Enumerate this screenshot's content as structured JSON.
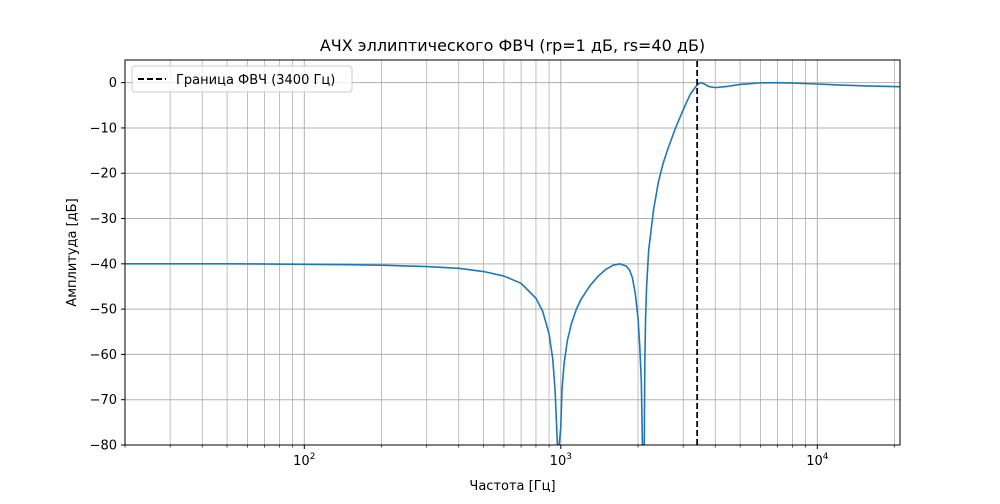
{
  "chart_data": {
    "type": "line",
    "title": "АЧХ эллиптического ФВЧ (rp=1 дБ, rs=40 дБ)",
    "xlabel": "Частота [Гц]",
    "ylabel": "Амплитуда [дБ]",
    "x_scale": "log",
    "xlim": [
      20,
      21000
    ],
    "ylim": [
      -80,
      5
    ],
    "x_ticks": [
      {
        "value": 100,
        "base": "10",
        "exp": "2"
      },
      {
        "value": 1000,
        "base": "10",
        "exp": "3"
      },
      {
        "value": 10000,
        "base": "10",
        "exp": "4"
      }
    ],
    "y_ticks": [
      0,
      -10,
      -20,
      -30,
      -40,
      -50,
      -60,
      -70,
      -80
    ],
    "y_tick_labels": [
      "0",
      "−10",
      "−20",
      "−30",
      "−40",
      "−50",
      "−60",
      "−70",
      "−80"
    ],
    "grid": "on (major and minor)",
    "legend_position": "upper-left",
    "series": [
      {
        "color": "#1f77b4",
        "x": [
          20,
          30,
          50,
          100,
          150,
          200,
          300,
          400,
          500,
          600,
          700,
          800,
          850,
          900,
          930,
          950,
          970,
          985,
          1000,
          1010,
          1030,
          1060,
          1100,
          1150,
          1200,
          1300,
          1400,
          1500,
          1600,
          1700,
          1800,
          1850,
          1900,
          1950,
          2000,
          2030,
          2060,
          2080,
          2100,
          2115,
          2125,
          2140,
          2160,
          2200,
          2300,
          2400,
          2500,
          2600,
          2800,
          3000,
          3200,
          3400,
          3500,
          3600,
          3700,
          3800,
          4000,
          4500,
          5000,
          6000,
          7000,
          8000,
          10000,
          12000,
          15000,
          18000,
          21000
        ],
        "y": [
          -40.0,
          -40.0,
          -40.0,
          -40.1,
          -40.2,
          -40.3,
          -40.6,
          -41.0,
          -41.7,
          -42.7,
          -44.3,
          -47.6,
          -50.5,
          -55.5,
          -61.0,
          -68.0,
          -80.0,
          -80.0,
          -76.0,
          -68.0,
          -62.0,
          -57.0,
          -53.2,
          -50.0,
          -47.8,
          -44.8,
          -42.7,
          -41.2,
          -40.3,
          -40.0,
          -40.5,
          -41.3,
          -43.0,
          -46.5,
          -52.0,
          -58.0,
          -66.0,
          -80.0,
          -80.0,
          -80.0,
          -62.0,
          -52.0,
          -45.0,
          -37.0,
          -28.0,
          -22.0,
          -18.0,
          -15.0,
          -10.0,
          -6.0,
          -2.5,
          -0.5,
          0.0,
          -0.2,
          -0.6,
          -0.9,
          -1.1,
          -0.8,
          -0.4,
          -0.05,
          0.0,
          -0.1,
          -0.3,
          -0.5,
          -0.7,
          -0.8,
          -0.9
        ]
      },
      {
        "name": "Граница ФВЧ (3400 Гц)",
        "color": "#000000",
        "style": "dashed",
        "x": [
          3400,
          3400
        ],
        "y": [
          -80,
          5
        ]
      }
    ]
  }
}
